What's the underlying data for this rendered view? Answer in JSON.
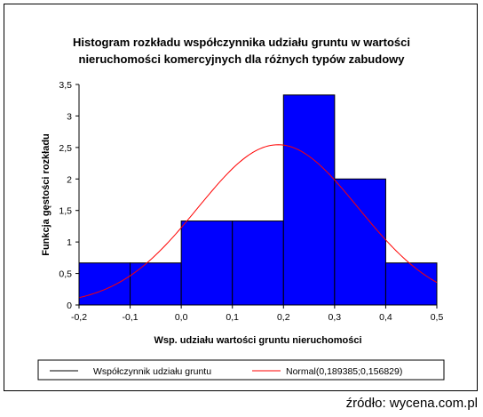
{
  "chart_data": {
    "type": "bar",
    "title_lines": [
      "Histogram rozkładu współczynnika udziału gruntu w wartości",
      "nieruchomości komercyjnych dla różnych typów zabudowy"
    ],
    "xlabel": "Wsp. udziału wartości gruntu nieruchomości",
    "ylabel": "Funkcja gęstości rozkładu",
    "x_ticks": [
      "-0,2",
      "-0,1",
      "0,0",
      "0,1",
      "0,2",
      "0,3",
      "0,4",
      "0,5"
    ],
    "y_ticks": [
      "0",
      "0,5",
      "1",
      "1,5",
      "2",
      "2,5",
      "3",
      "3,5"
    ],
    "xlim": [
      -0.2,
      0.5
    ],
    "ylim": [
      0,
      3.5
    ],
    "grid": false,
    "bins": [
      {
        "x0": -0.2,
        "x1": -0.1,
        "value": 0.667
      },
      {
        "x0": -0.1,
        "x1": 0.0,
        "value": 0.667
      },
      {
        "x0": 0.0,
        "x1": 0.1,
        "value": 1.333
      },
      {
        "x0": 0.1,
        "x1": 0.2,
        "value": 1.333
      },
      {
        "x0": 0.2,
        "x1": 0.3,
        "value": 3.333
      },
      {
        "x0": 0.3,
        "x1": 0.4,
        "value": 2.0
      },
      {
        "x0": 0.4,
        "x1": 0.5,
        "value": 0.667
      }
    ],
    "normal_curve": {
      "mean": 0.189385,
      "sd": 0.156829
    },
    "legend": [
      {
        "label": "Współczynnik udziału gruntu",
        "color": "#000000"
      },
      {
        "label": "Normal(0,189385;0,156829)",
        "color": "#ff0000"
      }
    ],
    "legend_position": "bottom",
    "bar_color": "#0000ff",
    "curve_color": "#ff0000"
  },
  "source": "źródło: wycena.com.pl"
}
